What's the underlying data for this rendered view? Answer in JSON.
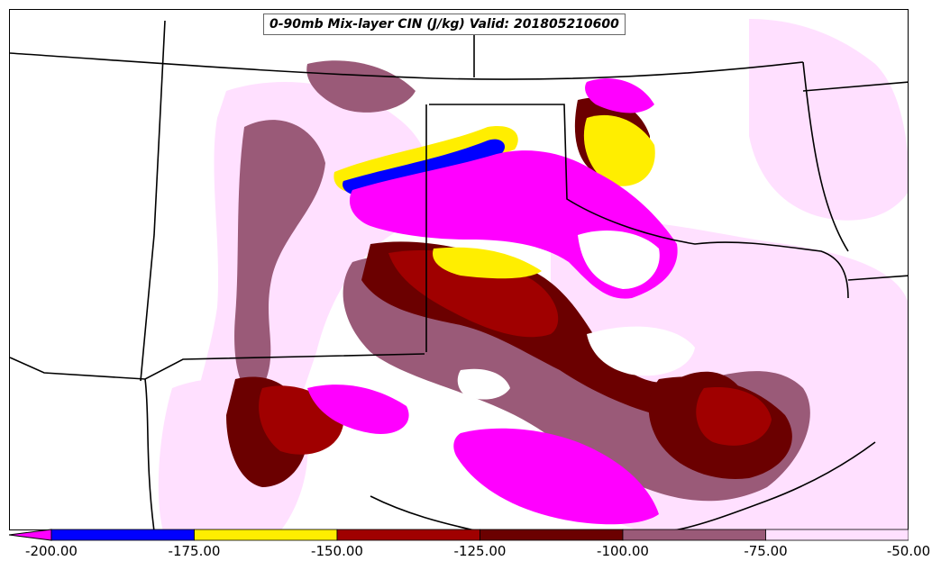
{
  "title": "0-90mb Mix-layer CIN (J/kg) Valid: 201805210600",
  "colorbar": {
    "bins": [
      {
        "range": [
          -200,
          -175
        ],
        "color": "#0000ff"
      },
      {
        "range": [
          -175,
          -150
        ],
        "color": "#ffee00"
      },
      {
        "range": [
          -150,
          -125
        ],
        "color": "#a00000"
      },
      {
        "range": [
          -125,
          -100
        ],
        "color": "#6b0000"
      },
      {
        "range": [
          -100,
          -75
        ],
        "color": "#9a5a78"
      },
      {
        "range": [
          -75,
          -50
        ],
        "color": "#ffe0ff"
      }
    ],
    "below_min_color": "#ff00ff",
    "ticks": [
      "-200.00",
      "-175.00",
      "-150.00",
      "-125.00",
      "-100.00",
      "-75.00",
      "-50.00"
    ]
  },
  "field_colors": {
    "magenta": "#ff00ff",
    "blue": "#0000ff",
    "yellow": "#ffee00",
    "red": "#a00000",
    "darkred": "#6b0000",
    "mauve": "#9a5a78",
    "pink": "#ffe0ff",
    "white": "#ffffff"
  }
}
